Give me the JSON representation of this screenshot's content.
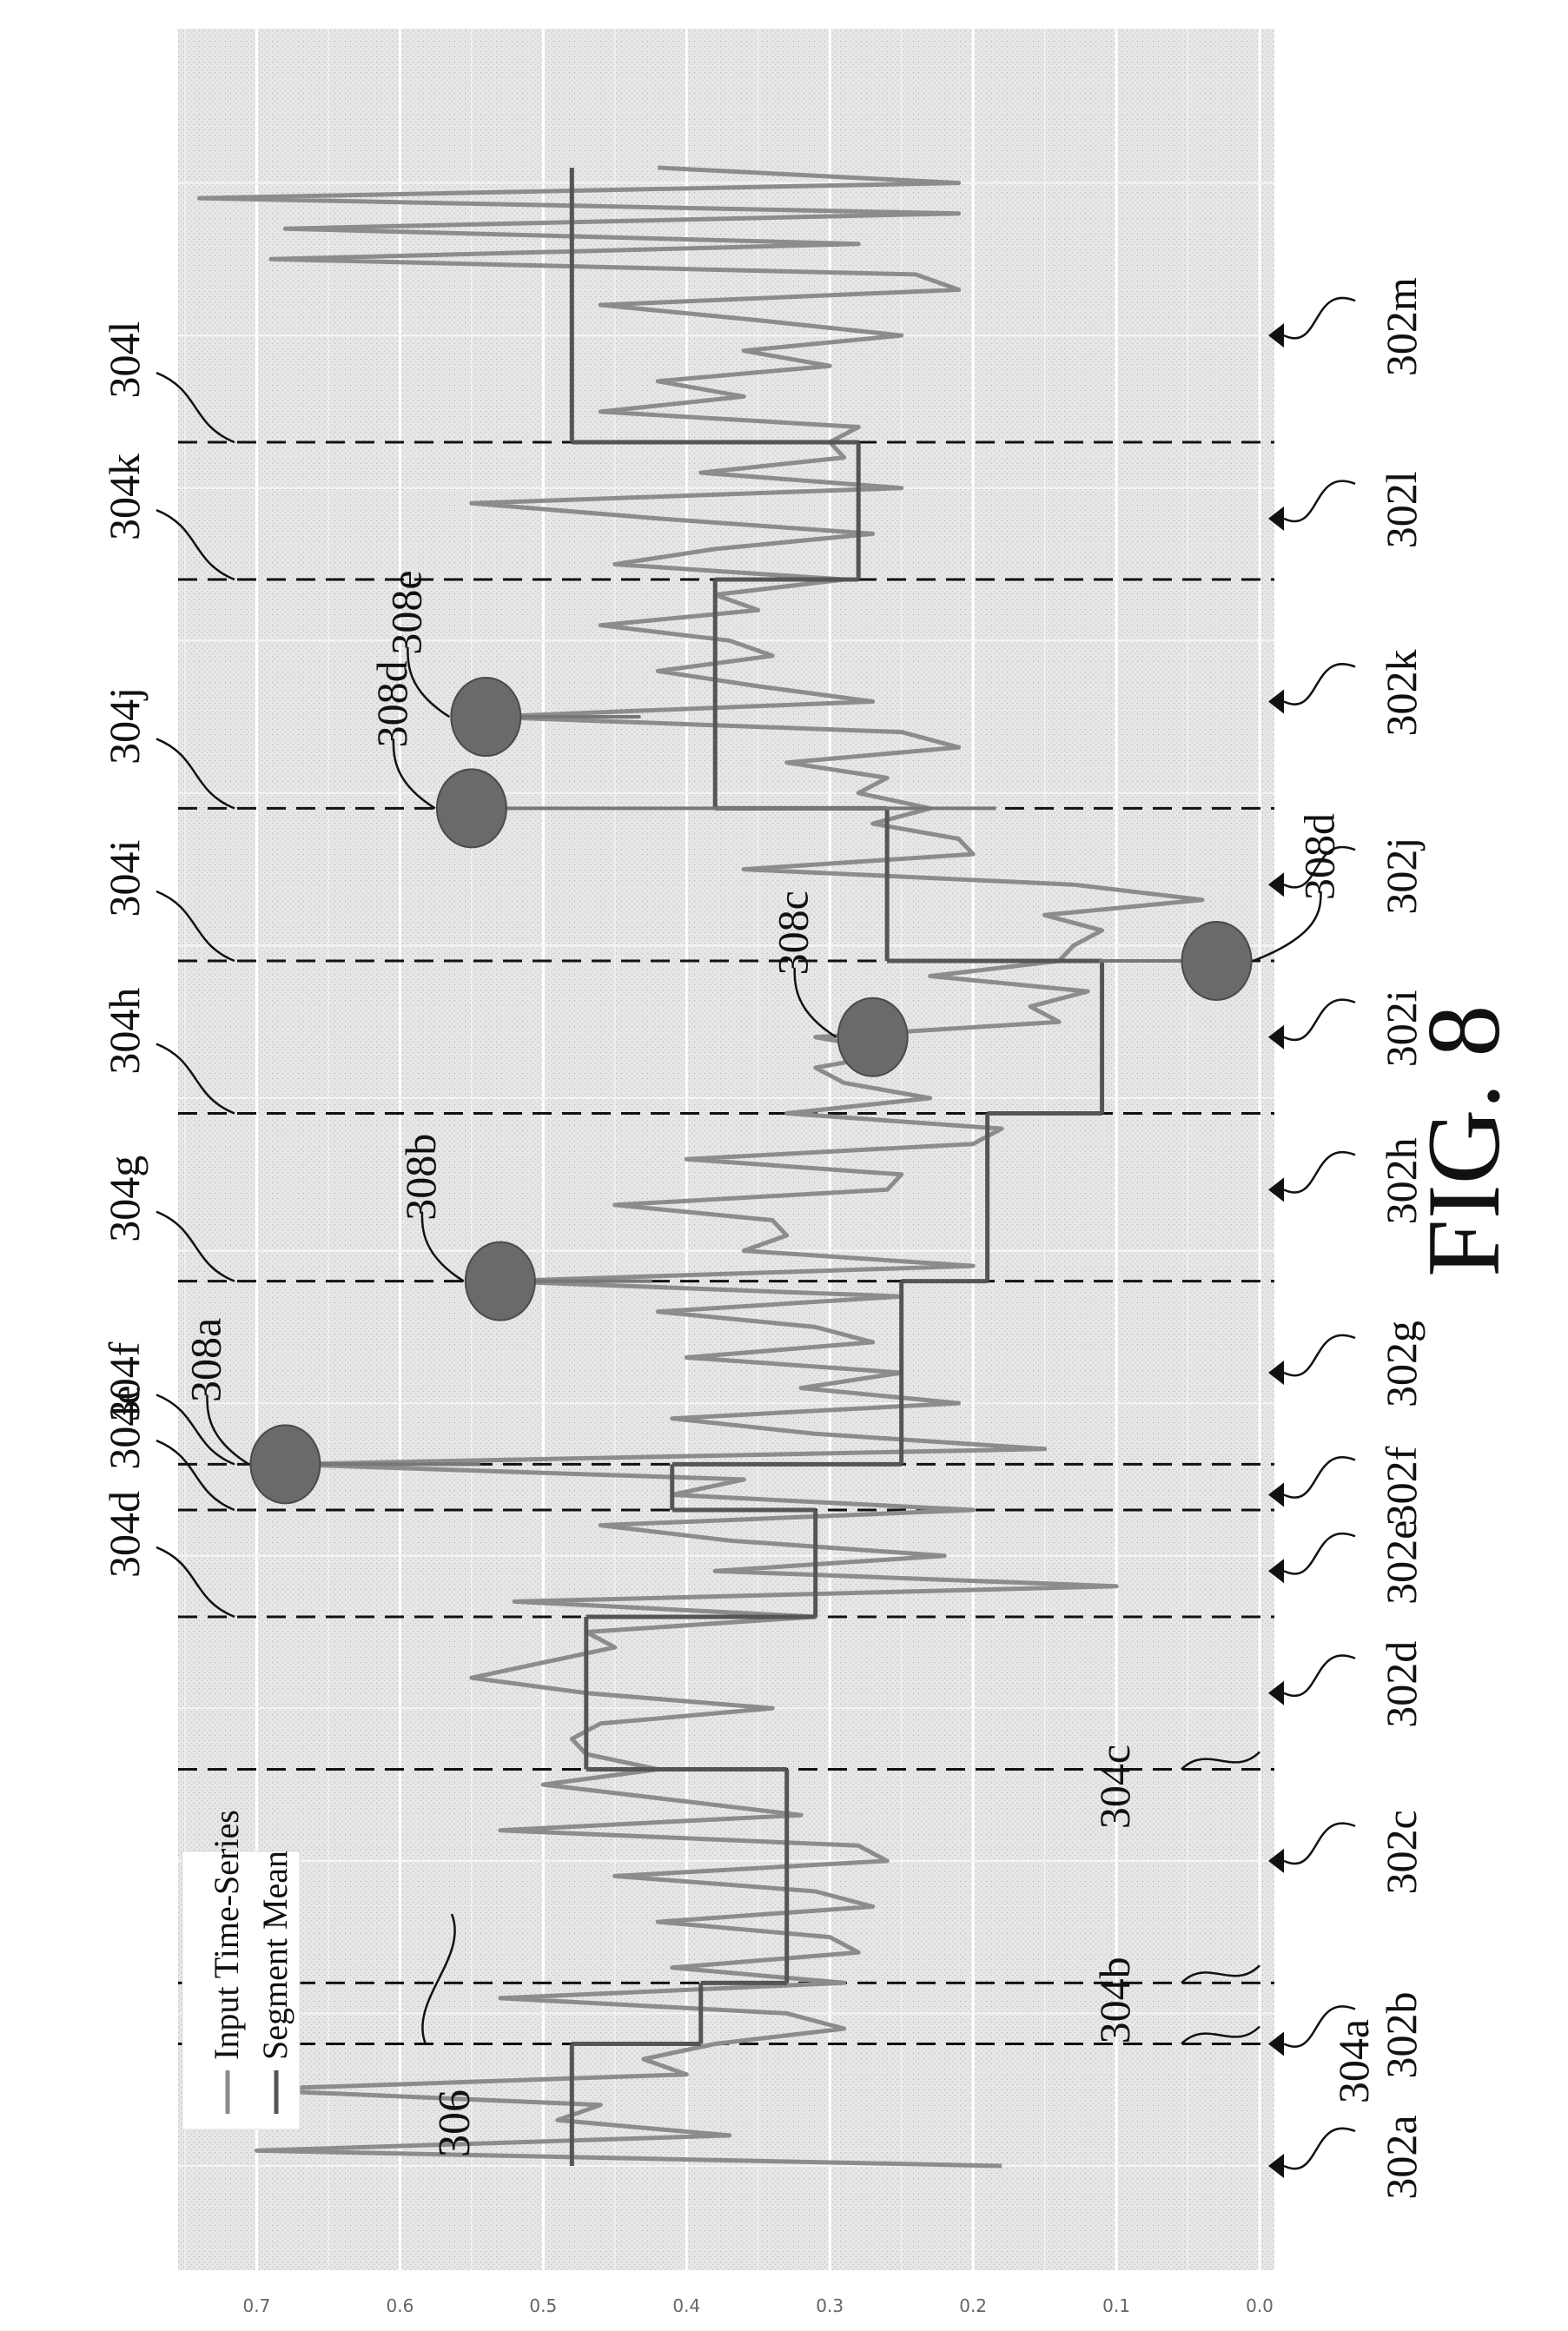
{
  "figure": {
    "caption": "FIG. 8",
    "legend": [
      "Input Time-Series",
      "Segment Mean"
    ],
    "yticks": [
      "0.7",
      "0.6",
      "0.5",
      "0.4",
      "0.3",
      "0.2",
      "0.1",
      "0.0"
    ],
    "labels_302": [
      "302a",
      "302b",
      "302c",
      "302d",
      "302e",
      "302f",
      "302g",
      "302h",
      "302i",
      "302j",
      "302k",
      "302l",
      "302m"
    ],
    "labels_304": [
      "304a",
      "304b",
      "304c",
      "304d",
      "304e",
      "304f",
      "304g",
      "304h",
      "304i",
      "304j",
      "304k",
      "304l"
    ],
    "label_306": "306",
    "labels_308": [
      "308a",
      "308b",
      "308c",
      "308d",
      "308d",
      "308e"
    ]
  },
  "chart_data": {
    "type": "line",
    "title": "",
    "xlabel": "",
    "ylabel": "",
    "ylim": [
      0,
      0.75
    ],
    "grid": true,
    "legend_position": "top-left",
    "series": [
      {
        "name": "Input Time-Series",
        "values": [
          0.18,
          0.7,
          0.37,
          0.49,
          0.46,
          0.71,
          0.4,
          0.43,
          0.38,
          0.29,
          0.33,
          0.53,
          0.29,
          0.41,
          0.28,
          0.3,
          0.42,
          0.27,
          0.31,
          0.45,
          0.26,
          0.28,
          0.53,
          0.32,
          0.41,
          0.5,
          0.42,
          0.47,
          0.48,
          0.46,
          0.34,
          0.47,
          0.55,
          0.5,
          0.45,
          0.47,
          0.31,
          0.52,
          0.1,
          0.38,
          0.22,
          0.37,
          0.46,
          0.2,
          0.41,
          0.36,
          0.68,
          0.15,
          0.31,
          0.41,
          0.21,
          0.32,
          0.25,
          0.4,
          0.27,
          0.31,
          0.42,
          0.25,
          0.53,
          0.2,
          0.36,
          0.33,
          0.34,
          0.45,
          0.26,
          0.25,
          0.4,
          0.2,
          0.18,
          0.33,
          0.23,
          0.29,
          0.31,
          0.25,
          0.31,
          0.14,
          0.16,
          0.12,
          0.23,
          0.14,
          0.13,
          0.11,
          0.15,
          0.04,
          0.13,
          0.36,
          0.2,
          0.21,
          0.27,
          0.23,
          0.28,
          0.26,
          0.33,
          0.21,
          0.25,
          0.54,
          0.27,
          0.35,
          0.42,
          0.34,
          0.37,
          0.46,
          0.35,
          0.38,
          0.29,
          0.45,
          0.38,
          0.27,
          0.42,
          0.55,
          0.25,
          0.39,
          0.29,
          0.3,
          0.28,
          0.46,
          0.36,
          0.42,
          0.3,
          0.36,
          0.25,
          0.35,
          0.46,
          0.21,
          0.24,
          0.69,
          0.28,
          0.68,
          0.21,
          0.74,
          0.21,
          0.42
        ]
      },
      {
        "name": "Segment Mean",
        "segments": [
          {
            "x": [
              0,
              8
            ],
            "y": 0.48
          },
          {
            "x": [
              8,
              12
            ],
            "y": 0.39
          },
          {
            "x": [
              12,
              26
            ],
            "y": 0.33
          },
          {
            "x": [
              26,
              36
            ],
            "y": 0.47
          },
          {
            "x": [
              36,
              43
            ],
            "y": 0.31
          },
          {
            "x": [
              43,
              46
            ],
            "y": 0.41
          },
          {
            "x": [
              46,
              58
            ],
            "y": 0.25
          },
          {
            "x": [
              58,
              69
            ],
            "y": 0.19
          },
          {
            "x": [
              69,
              79
            ],
            "y": 0.11
          },
          {
            "x": [
              79,
              89
            ],
            "y": 0.26
          },
          {
            "x": [
              89,
              104
            ],
            "y": 0.38
          },
          {
            "x": [
              104,
              113
            ],
            "y": 0.28
          },
          {
            "x": [
              113,
              131
            ],
            "y": 0.48
          }
        ]
      }
    ],
    "n_points": 132,
    "boundaries": [
      8,
      12,
      26,
      36,
      43,
      46,
      58,
      69,
      79,
      89,
      104,
      113
    ],
    "anomalies": [
      {
        "label": "308a",
        "index": 46,
        "value": 0.68
      },
      {
        "label": "308b",
        "index": 58,
        "value": 0.53
      },
      {
        "label": "308c",
        "index": 74,
        "value": 0.27
      },
      {
        "label": "308d",
        "index": 79,
        "value": 0.03
      },
      {
        "label": "308d",
        "index": 89,
        "value": 0.55
      },
      {
        "label": "308e",
        "index": 95,
        "value": 0.54
      }
    ]
  }
}
